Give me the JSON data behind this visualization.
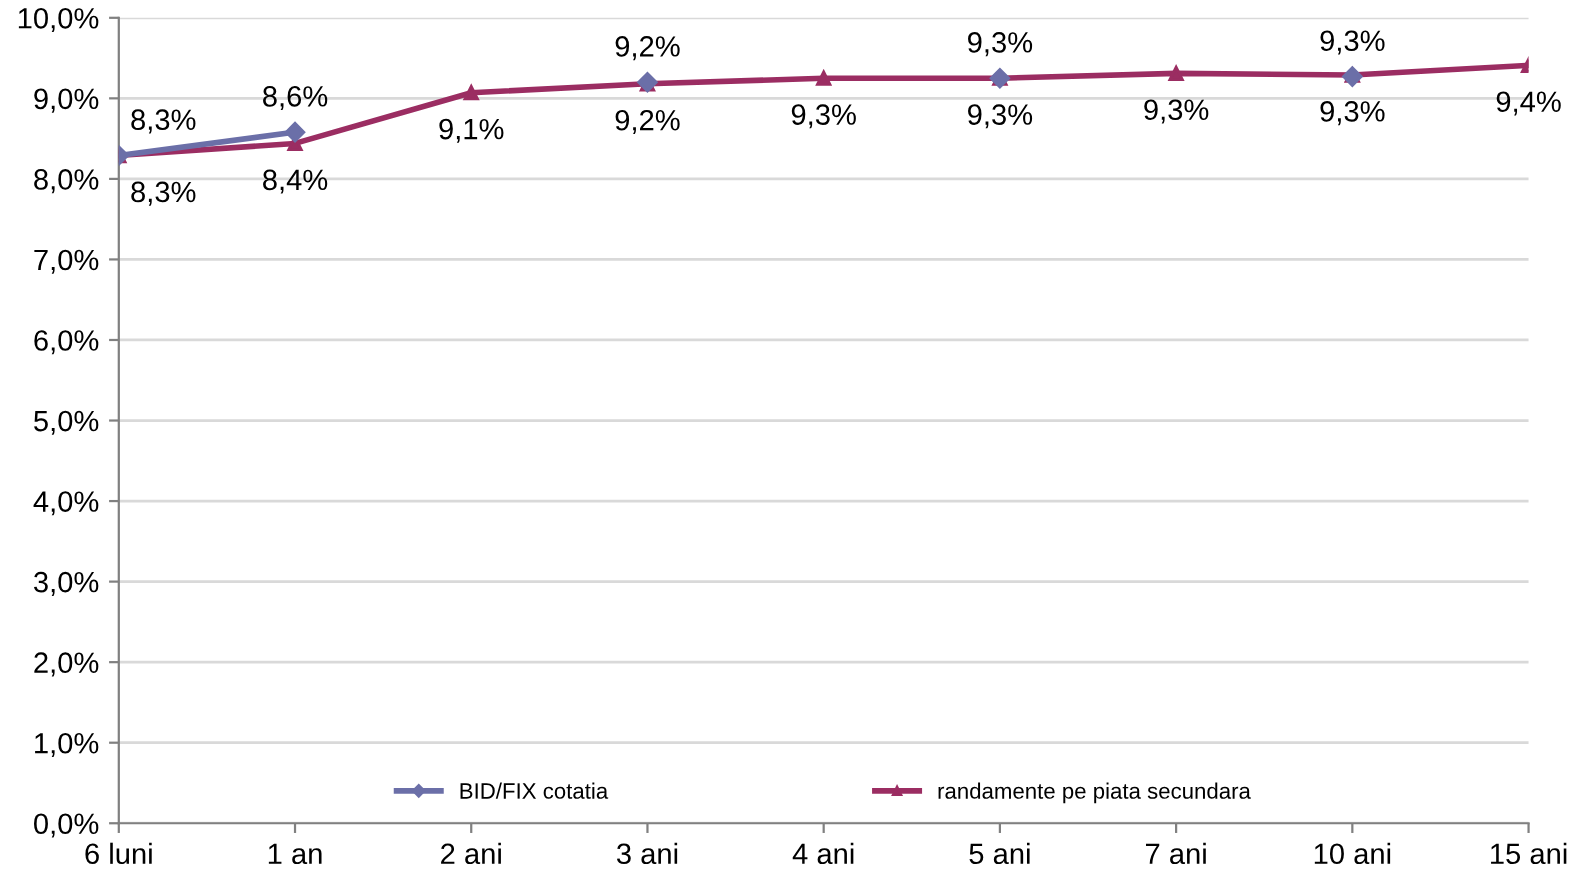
{
  "chart_data": {
    "type": "line",
    "categories": [
      "6 luni",
      "1 an",
      "2 ani",
      "3 ani",
      "4 ani",
      "5 ani",
      "7 ani",
      "10 ani",
      "15 ani"
    ],
    "series": [
      {
        "name": "BID/FIX cotatia",
        "color": "#6b6fa8",
        "marker": "diamond",
        "values": [
          8.29,
          8.58,
          null,
          9.2,
          null,
          9.25,
          null,
          9.27,
          null
        ],
        "value_labels": [
          "8,3%",
          "8,6%",
          null,
          "9,2%",
          null,
          "9,3%",
          null,
          "9,3%",
          null
        ]
      },
      {
        "name": "randamente pe piata secundara",
        "color": "#9b2d62",
        "marker": "triangle",
        "values": [
          8.29,
          8.44,
          9.07,
          9.18,
          9.25,
          9.25,
          9.31,
          9.29,
          9.41
        ],
        "value_labels": [
          "8,3%",
          "8,4%",
          "9,1%",
          "9,2%",
          "9,3%",
          "9,3%",
          "9,3%",
          "9,3%",
          "9,4%"
        ]
      }
    ],
    "ylim": [
      0,
      10
    ],
    "yticks": [
      {
        "value": 0,
        "label": "0,0%"
      },
      {
        "value": 1,
        "label": "1,0%"
      },
      {
        "value": 2,
        "label": "2,0%"
      },
      {
        "value": 3,
        "label": "3,0%"
      },
      {
        "value": 4,
        "label": "4,0%"
      },
      {
        "value": 5,
        "label": "5,0%"
      },
      {
        "value": 6,
        "label": "6,0%"
      },
      {
        "value": 7,
        "label": "7,0%"
      },
      {
        "value": 8,
        "label": "8,0%"
      },
      {
        "value": 9,
        "label": "9,0%"
      },
      {
        "value": 10,
        "label": "10,0%"
      }
    ],
    "grid": "y",
    "legend": "bottom"
  }
}
